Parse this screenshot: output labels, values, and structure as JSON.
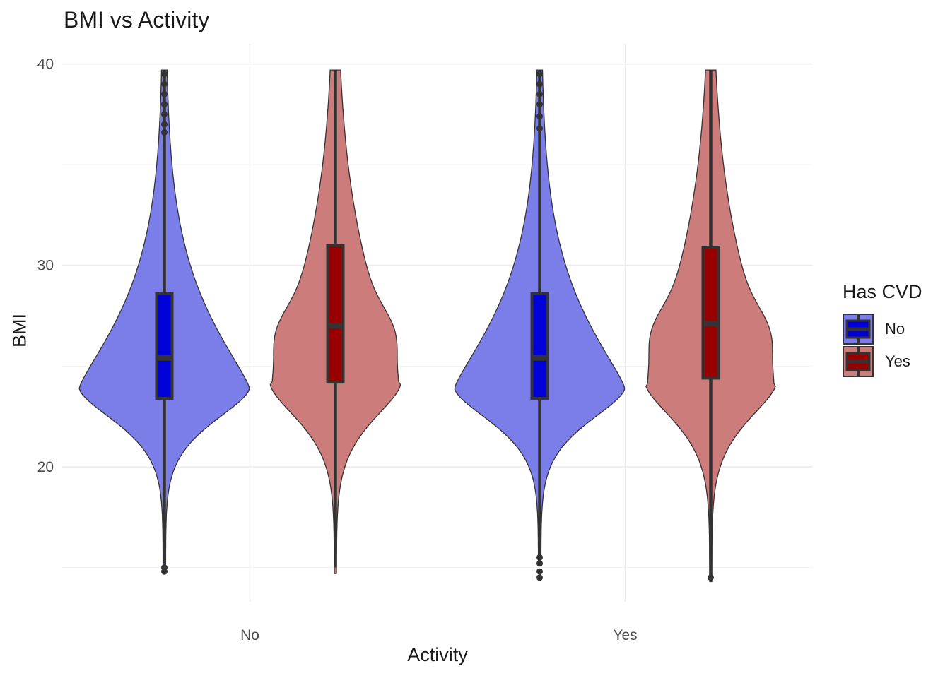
{
  "chart_data": {
    "type": "violin",
    "title": "BMI vs Activity",
    "xlabel": "Activity",
    "ylabel": "BMI",
    "categories": [
      "No",
      "Yes"
    ],
    "ylim": [
      13.3,
      41
    ],
    "yticks": [
      20,
      30,
      40
    ],
    "grid": true,
    "legend": {
      "title": "Has CVD",
      "position": "right",
      "entries": [
        {
          "label": "No",
          "violin_fill": "#7b7ee8",
          "box_fill": "#0000d8"
        },
        {
          "label": "Yes",
          "violin_fill": "#cc7c7b",
          "box_fill": "#980000"
        }
      ]
    },
    "series": [
      {
        "name": "No",
        "violin_fill": "#7b7ee8",
        "box_fill": "#0000d8",
        "groups": [
          {
            "category": "No",
            "min": 15.2,
            "q1": 23.4,
            "median": 25.4,
            "q3": 28.6,
            "max": 39.7,
            "outliers": [
              14.8,
              15.0,
              36.6,
              37.0,
              37.5,
              38.0,
              38.5,
              39.0,
              39.5
            ]
          },
          {
            "category": "Yes",
            "min": 15.6,
            "q1": 23.4,
            "median": 25.4,
            "q3": 28.6,
            "max": 39.7,
            "outliers": [
              14.5,
              14.8,
              15.2,
              15.5,
              36.8,
              37.4,
              38.0,
              38.5,
              39.0,
              39.5
            ]
          }
        ]
      },
      {
        "name": "Yes",
        "violin_fill": "#cc7c7b",
        "box_fill": "#980000",
        "groups": [
          {
            "category": "No",
            "min": 15.0,
            "q1": 24.2,
            "median": 27.0,
            "q3": 31.0,
            "max": 39.7,
            "outliers": []
          },
          {
            "category": "Yes",
            "min": 14.6,
            "q1": 24.4,
            "median": 27.1,
            "q3": 30.9,
            "max": 39.7,
            "outliers": [
              14.5
            ]
          }
        ]
      }
    ]
  }
}
